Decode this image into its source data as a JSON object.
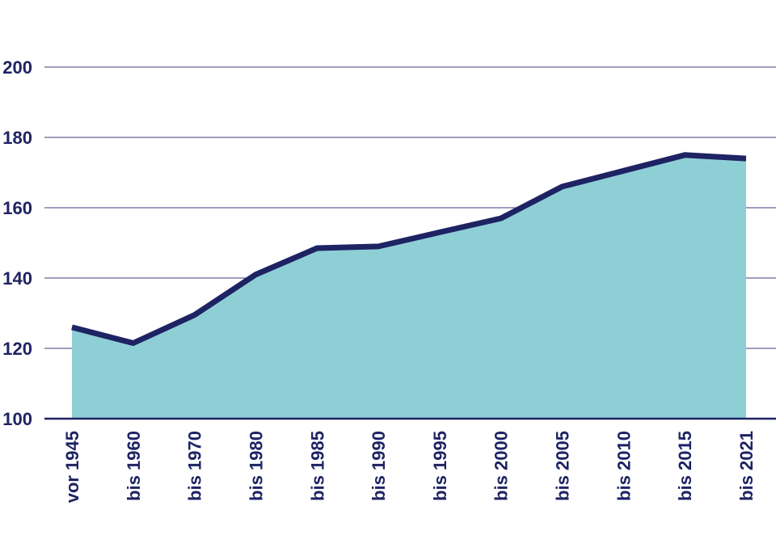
{
  "chart_data": {
    "type": "area",
    "categories": [
      "vor 1945",
      "bis 1960",
      "bis 1970",
      "bis 1980",
      "bis 1985",
      "bis 1990",
      "bis 1995",
      "bis 2000",
      "bis 2005",
      "bis 2010",
      "bis 2015",
      "bis 2021"
    ],
    "series": [
      {
        "values": [
          126,
          121.5,
          129.5,
          141,
          148.5,
          149,
          153,
          157,
          166,
          170.5,
          175,
          174
        ]
      }
    ],
    "yticks": [
      "100",
      "120",
      "140",
      "160",
      "180",
      "200"
    ],
    "ylim": [
      100,
      200
    ],
    "grid": true,
    "legend": "none",
    "title": "",
    "xlabel": "",
    "ylabel": ""
  },
  "colors": {
    "area_fill": "#8ecfd6",
    "line": "#1e2363",
    "grid": "#3c3f7a",
    "text": "#1e2363",
    "axis": "#1e2363"
  }
}
